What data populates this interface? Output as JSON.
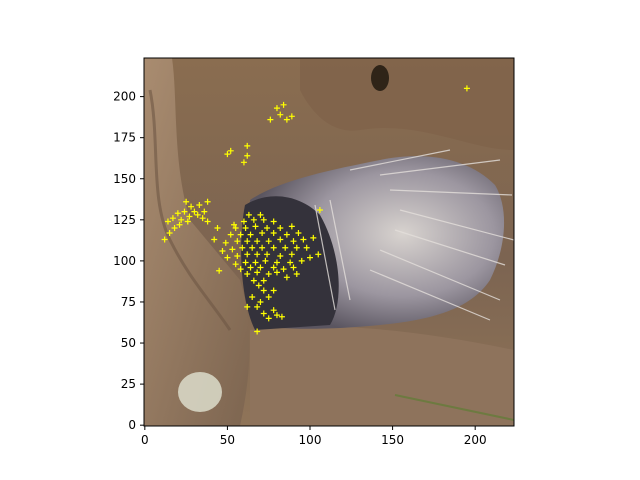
{
  "colors": {
    "marker": "#ffff00",
    "axes": "#000000",
    "ground": "#8f7255",
    "rock": "#9a8068",
    "porcupine_dark": "#3d3b45",
    "quills": "#cfc9c6"
  },
  "image": {
    "subject": "porcupine",
    "width_units": 224,
    "height_units": 224
  },
  "axes": {
    "xlim": [
      -0.5,
      223.5
    ],
    "ylim": [
      223.5,
      -0.5
    ],
    "x_ticks": [
      {
        "value": 0,
        "label": "0"
      },
      {
        "value": 50,
        "label": "50"
      },
      {
        "value": 100,
        "label": "100"
      },
      {
        "value": 150,
        "label": "150"
      },
      {
        "value": 200,
        "label": "200"
      }
    ],
    "y_ticks": [
      {
        "value": 0,
        "label": "0"
      },
      {
        "value": 25,
        "label": "25"
      },
      {
        "value": 50,
        "label": "50"
      },
      {
        "value": 75,
        "label": "75"
      },
      {
        "value": 100,
        "label": "100"
      },
      {
        "value": 125,
        "label": "125"
      },
      {
        "value": 150,
        "label": "150"
      },
      {
        "value": 175,
        "label": "175"
      },
      {
        "value": 200,
        "label": "200"
      }
    ]
  },
  "scatter": {
    "marker": "+",
    "points": [
      [
        68,
        57
      ],
      [
        75,
        65
      ],
      [
        72,
        68
      ],
      [
        80,
        67
      ],
      [
        83,
        66
      ],
      [
        78,
        70
      ],
      [
        62,
        72
      ],
      [
        68,
        72
      ],
      [
        70,
        75
      ],
      [
        65,
        78
      ],
      [
        75,
        78
      ],
      [
        72,
        82
      ],
      [
        78,
        82
      ],
      [
        69,
        85
      ],
      [
        66,
        88
      ],
      [
        72,
        88
      ],
      [
        62,
        92
      ],
      [
        68,
        93
      ],
      [
        75,
        92
      ],
      [
        80,
        93
      ],
      [
        86,
        90
      ],
      [
        92,
        92
      ],
      [
        45,
        94
      ],
      [
        58,
        95
      ],
      [
        64,
        96
      ],
      [
        70,
        96
      ],
      [
        78,
        96
      ],
      [
        84,
        95
      ],
      [
        90,
        96
      ],
      [
        55,
        98
      ],
      [
        61,
        99
      ],
      [
        67,
        99
      ],
      [
        73,
        100
      ],
      [
        80,
        99
      ],
      [
        88,
        99
      ],
      [
        95,
        100
      ],
      [
        100,
        102
      ],
      [
        105,
        104
      ],
      [
        50,
        102
      ],
      [
        56,
        103
      ],
      [
        62,
        104
      ],
      [
        68,
        104
      ],
      [
        74,
        104
      ],
      [
        82,
        103
      ],
      [
        89,
        104
      ],
      [
        47,
        106
      ],
      [
        53,
        107
      ],
      [
        59,
        108
      ],
      [
        65,
        108
      ],
      [
        71,
        108
      ],
      [
        78,
        108
      ],
      [
        85,
        108
      ],
      [
        92,
        108
      ],
      [
        98,
        108
      ],
      [
        49,
        111
      ],
      [
        56,
        112
      ],
      [
        62,
        112
      ],
      [
        68,
        112
      ],
      [
        75,
        112
      ],
      [
        82,
        113
      ],
      [
        90,
        112
      ],
      [
        96,
        113
      ],
      [
        102,
        114
      ],
      [
        52,
        116
      ],
      [
        58,
        116
      ],
      [
        64,
        116
      ],
      [
        71,
        117
      ],
      [
        78,
        117
      ],
      [
        86,
        116
      ],
      [
        93,
        117
      ],
      [
        55,
        120
      ],
      [
        61,
        120
      ],
      [
        67,
        121
      ],
      [
        74,
        120
      ],
      [
        82,
        120
      ],
      [
        89,
        121
      ],
      [
        60,
        124
      ],
      [
        66,
        125
      ],
      [
        72,
        125
      ],
      [
        78,
        124
      ],
      [
        63,
        128
      ],
      [
        70,
        128
      ],
      [
        54,
        122
      ],
      [
        42,
        113
      ],
      [
        44,
        120
      ],
      [
        12,
        113
      ],
      [
        15,
        117
      ],
      [
        18,
        120
      ],
      [
        21,
        122
      ],
      [
        14,
        124
      ],
      [
        17,
        126
      ],
      [
        22,
        125
      ],
      [
        26,
        124
      ],
      [
        20,
        129
      ],
      [
        24,
        130
      ],
      [
        27,
        127
      ],
      [
        30,
        130
      ],
      [
        32,
        128
      ],
      [
        35,
        126
      ],
      [
        38,
        124
      ],
      [
        36,
        130
      ],
      [
        28,
        133
      ],
      [
        33,
        134
      ],
      [
        25,
        136
      ],
      [
        38,
        136
      ],
      [
        106,
        131
      ],
      [
        60,
        160
      ],
      [
        62,
        164
      ],
      [
        50,
        165
      ],
      [
        52,
        167
      ],
      [
        62,
        170
      ],
      [
        76,
        186
      ],
      [
        82,
        189
      ],
      [
        86,
        186
      ],
      [
        89,
        188
      ],
      [
        80,
        193
      ],
      [
        84,
        195
      ],
      [
        195,
        205
      ]
    ]
  }
}
